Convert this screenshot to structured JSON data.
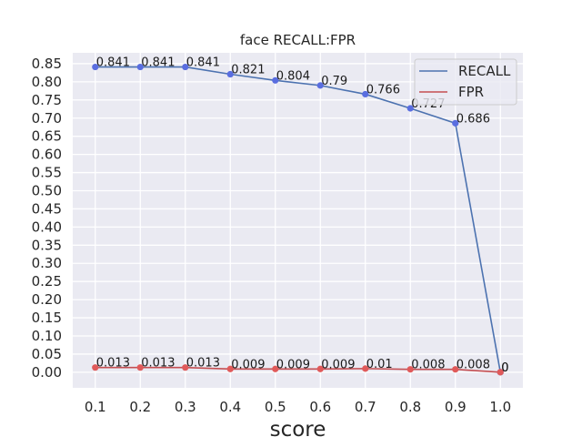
{
  "chart_data": {
    "type": "line",
    "title": "face RECALL:FPR",
    "xlabel": "score",
    "ylabel": "",
    "x": [
      0.1,
      0.2,
      0.3,
      0.4,
      0.5,
      0.6,
      0.7,
      0.8,
      0.9,
      1.0
    ],
    "x_tick_labels": [
      "0.1",
      "0.2",
      "0.3",
      "0.4",
      "0.5",
      "0.6",
      "0.7",
      "0.8",
      "0.9",
      "1.0"
    ],
    "y_ticks": [
      0.0,
      0.05,
      0.1,
      0.15,
      0.2,
      0.25,
      0.3,
      0.35,
      0.4,
      0.45,
      0.5,
      0.55,
      0.6,
      0.65,
      0.7,
      0.75,
      0.8,
      0.85
    ],
    "y_tick_labels": [
      "0.00",
      "0.05",
      "0.10",
      "0.15",
      "0.20",
      "0.25",
      "0.30",
      "0.35",
      "0.40",
      "0.45",
      "0.50",
      "0.55",
      "0.60",
      "0.65",
      "0.70",
      "0.75",
      "0.80",
      "0.85"
    ],
    "xlim": [
      0.05,
      1.05
    ],
    "ylim": [
      -0.043,
      0.88
    ],
    "grid": true,
    "legend_position": "top-right",
    "series": [
      {
        "name": "RECALL",
        "line_color": "#4c72b0",
        "marker_color": "#5a6ee0",
        "values": [
          0.841,
          0.841,
          0.841,
          0.821,
          0.804,
          0.79,
          0.766,
          0.727,
          0.686,
          0
        ],
        "labels": [
          "0.841",
          "0.841",
          "0.841",
          "0.821",
          "0.804",
          "0.79",
          "0.766",
          "0.727",
          "0.686",
          "0"
        ]
      },
      {
        "name": "FPR",
        "line_color": "#c44e52",
        "marker_color": "#e05a5a",
        "values": [
          0.013,
          0.013,
          0.013,
          0.009,
          0.009,
          0.009,
          0.01,
          0.008,
          0.008,
          0
        ],
        "labels": [
          "0.013",
          "0.013",
          "0.013",
          "0.009",
          "0.009",
          "0.009",
          "0.01",
          "0.008",
          "0.008",
          "0"
        ]
      }
    ]
  }
}
